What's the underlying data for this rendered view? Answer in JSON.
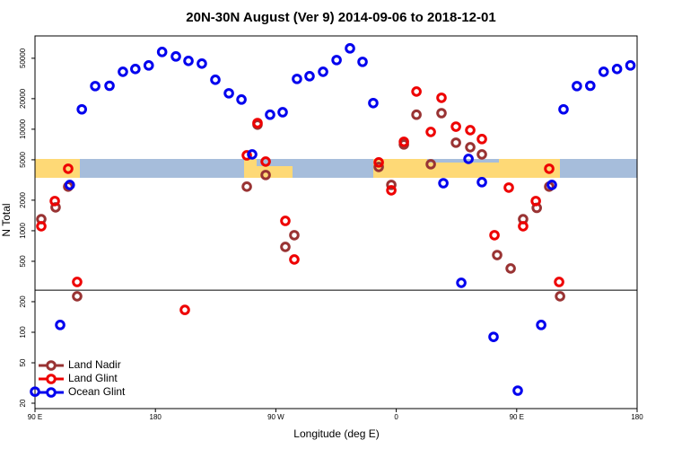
{
  "chart_data": {
    "type": "scatter",
    "title": "20N-30N August (Ver 9)   2014-09-06 to 2018-12-01",
    "x_label": "Longitude (deg E)",
    "y_label": "N Total",
    "log_y": true,
    "legend": "lower left",
    "xlim": [
      90,
      540
    ],
    "ylim": [
      17.7,
      83000
    ],
    "xticks": [
      {
        "value": 90,
        "label": "90 E"
      },
      {
        "value": 180,
        "label": "180"
      },
      {
        "value": 270,
        "label": "90 W"
      },
      {
        "value": 360,
        "label": "0"
      },
      {
        "value": 450,
        "label": "90 E"
      },
      {
        "value": 540,
        "label": "180"
      }
    ],
    "yticks": [
      20,
      50,
      100,
      200,
      500,
      1000,
      2000,
      5000,
      10000,
      20000,
      50000
    ],
    "hline": 260,
    "series": [
      {
        "name": "Land Nadir",
        "color": "#993333",
        "x": [
          94.7,
          105.4,
          114.8,
          121.5,
          248.3,
          256.3,
          262.4,
          277.1,
          283.8,
          346.9,
          356.3,
          365.7,
          375.1,
          385.8,
          393.8,
          404.6,
          415.3,
          424,
          435.4,
          445.5,
          454.8,
          465,
          474.3,
          482.4
        ],
        "values": [
          1300,
          1700,
          2720,
          226,
          2720,
          11100,
          3540,
          693,
          904,
          4250,
          2830,
          7080,
          13900,
          4520,
          14400,
          7370,
          6650,
          5650,
          576,
          425,
          1300,
          1680,
          2720,
          226
        ]
      },
      {
        "name": "Land Glint",
        "color": "#ee0000",
        "x": [
          94.7,
          104.8,
          114.8,
          121.5,
          202,
          248.3,
          256.3,
          262.4,
          277.1,
          283.8,
          346.9,
          356.3,
          365.7,
          375.1,
          385.8,
          393.8,
          404.6,
          415.3,
          424,
          433.4,
          444.1,
          454.8,
          464.3,
          474.3,
          481.7
        ],
        "values": [
          1107,
          1960,
          4080,
          313,
          166,
          5530,
          11500,
          4800,
          1250,
          521,
          4710,
          2500,
          7520,
          23500,
          9400,
          20400,
          10600,
          9790,
          8000,
          904,
          2660,
          1107,
          1960,
          4080,
          313
        ]
      },
      {
        "name": "Ocean Glint",
        "color": "#0000ee",
        "x": [
          90,
          108.8,
          116,
          125,
          135,
          145.7,
          155.7,
          165,
          175,
          185,
          195.3,
          204.7,
          214.7,
          224.8,
          234.9,
          244.3,
          252.3,
          265.7,
          275.1,
          285.8,
          295.2,
          305.3,
          315.4,
          325.4,
          334.8,
          342.8,
          395.2,
          408.6,
          414,
          424,
          432.7,
          450.8,
          468.3,
          476.3,
          485,
          495,
          505,
          515,
          525,
          535
        ],
        "values": [
          26,
          118,
          2825,
          15700,
          26600,
          26800,
          36800,
          39200,
          42500,
          57700,
          52100,
          47100,
          44300,
          30700,
          22600,
          19600,
          5650,
          13900,
          14700,
          31300,
          33300,
          36800,
          48000,
          62600,
          46100,
          18100,
          2940,
          307,
          5100,
          3010,
          90,
          26.6,
          118,
          2825,
          15700,
          26600,
          26800,
          36800,
          39200,
          42500
        ]
      }
    ]
  }
}
